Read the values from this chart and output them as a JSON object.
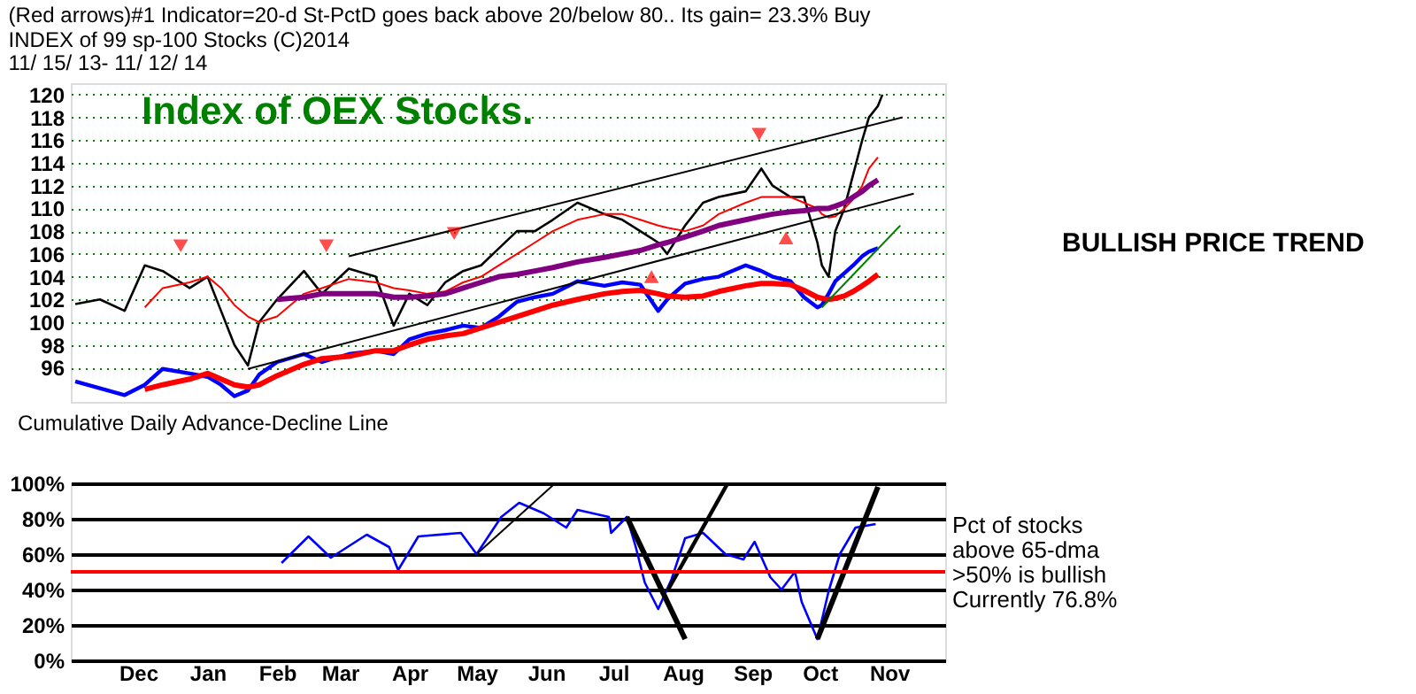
{
  "chart_data": [
    {
      "type": "line",
      "title": [
        "(Red arrows)#1 Indicator=20-d St-PctD goes back above 20/below 80.. Its gain= 23.3% Buy",
        "INDEX of  99 sp-100 Stocks  (C)2014"
      ],
      "subtitle": "11/ 15/ 13- 11/ 12/ 14",
      "annotations": [
        "Index of OEX Stocks.",
        "BULLISH PRICE TREND",
        "Cumulative Daily Advance-Decline Line"
      ],
      "x": [
        "2013-11-17",
        "2013-11-28",
        "2013-12-09",
        "2013-12-18",
        "2013-12-26",
        "2014-01-07",
        "2014-01-15",
        "2014-01-21",
        "2014-01-27",
        "2014-02-02",
        "2014-02-07",
        "2014-02-15",
        "2014-02-27",
        "2014-03-07",
        "2014-03-19",
        "2014-03-31",
        "2014-04-08",
        "2014-04-15",
        "2014-04-23",
        "2014-05-01",
        "2014-05-09",
        "2014-05-17",
        "2014-05-25",
        "2014-06-02",
        "2014-06-10",
        "2014-06-18",
        "2014-06-29",
        "2014-07-11",
        "2014-07-19",
        "2014-07-27",
        "2014-08-04",
        "2014-08-08",
        "2014-08-16",
        "2014-08-24",
        "2014-08-31",
        "2014-09-12",
        "2014-09-19",
        "2014-09-24",
        "2014-10-02",
        "2014-10-08",
        "2014-10-14",
        "2014-10-16",
        "2014-10-19",
        "2014-10-22",
        "2014-10-26",
        "2014-10-30",
        "2014-11-03",
        "2014-11-06",
        "2014-11-10",
        "2014-11-12"
      ],
      "xlim": [
        "2013-11-15",
        "2014-12-10"
      ],
      "ylim": [
        93,
        121
      ],
      "yticks": [
        96,
        98,
        100,
        102,
        104,
        106,
        108,
        110,
        112,
        114,
        116,
        118,
        120
      ],
      "grid": "y",
      "tick_labels": "y",
      "series": [
        {
          "color": "#000000",
          "values": [
            101.6,
            102,
            101,
            105,
            104.5,
            103,
            104,
            101,
            98,
            96.2,
            100,
            102,
            104.5,
            102.5,
            104.7,
            104,
            99.7,
            102.5,
            101.5,
            103.5,
            104.5,
            105,
            106.5,
            108,
            108,
            109,
            110.5,
            109.5,
            109,
            108,
            107,
            106,
            108.5,
            110.5,
            111,
            111.5,
            113.5,
            112,
            111,
            111,
            107,
            105,
            104,
            108,
            110,
            113,
            116,
            118,
            119,
            120
          ]
        },
        {
          "color": "#ff0000",
          "values": [
            null,
            null,
            null,
            101.3,
            103,
            103.5,
            104,
            103,
            101.5,
            100.5,
            100,
            100.5,
            102.5,
            103,
            103.8,
            103.5,
            103,
            102.8,
            102.5,
            102.7,
            103.5,
            104,
            105,
            106,
            107,
            108,
            109,
            109.5,
            109.5,
            109,
            108.5,
            108.3,
            108,
            108.5,
            109.5,
            110.5,
            111,
            111,
            111,
            110.5,
            110,
            109.5,
            109.2,
            109.3,
            110,
            110.8,
            112,
            113.5,
            114.5,
            null
          ]
        },
        {
          "color": "#800080",
          "values": [
            null,
            null,
            null,
            null,
            null,
            null,
            null,
            null,
            null,
            null,
            null,
            102,
            102.2,
            102.5,
            102.5,
            102.5,
            102.2,
            102.2,
            102.3,
            102.5,
            103,
            103.5,
            104,
            104.2,
            104.5,
            104.8,
            105.3,
            105.7,
            106,
            106.3,
            106.8,
            107,
            107.5,
            108,
            108.5,
            109,
            109.3,
            109.5,
            109.7,
            109.8,
            110,
            110,
            110,
            110.2,
            110.5,
            111,
            111.5,
            112,
            112.5,
            null
          ]
        },
        {
          "color": "#0000ff",
          "values": [
            94.8,
            94.2,
            93.6,
            94.5,
            95.9,
            95.5,
            95.2,
            94.5,
            93.5,
            94,
            95.4,
            96.5,
            97.2,
            96.5,
            97.2,
            97.5,
            97.2,
            98.5,
            99,
            99.3,
            99.7,
            99.5,
            100.5,
            101.8,
            102.2,
            102.5,
            103.6,
            103.2,
            103.5,
            103.3,
            101,
            102,
            103.4,
            103.8,
            104,
            105,
            104.5,
            104,
            103.6,
            102.2,
            101.3,
            101.5,
            102.5,
            103.6,
            104.3,
            105,
            105.8,
            106.2,
            106.5,
            null
          ]
        },
        {
          "color": "#ff0000",
          "values": [
            null,
            null,
            null,
            94.1,
            94.5,
            95,
            95.5,
            95,
            94.5,
            94.3,
            94.5,
            95.3,
            96.3,
            96.8,
            97,
            97.5,
            97.5,
            98,
            98.5,
            98.8,
            99,
            99.5,
            100,
            100.5,
            101,
            101.5,
            102,
            102.5,
            102.7,
            102.8,
            102.5,
            102.3,
            102.2,
            102.3,
            102.7,
            103.2,
            103.4,
            103.4,
            103.3,
            102.8,
            102.2,
            102.1,
            102,
            102.1,
            102.3,
            102.7,
            103.2,
            103.6,
            104.2,
            null
          ]
        },
        {
          "color": "#000000",
          "x": [
            "2014-03-19",
            "2014-11-21"
          ],
          "values": [
            105.8,
            118
          ]
        },
        {
          "color": "#000000",
          "x": [
            "2014-02-02",
            "2014-11-26"
          ],
          "values": [
            95.9,
            111.3
          ]
        },
        {
          "color": "#008000",
          "x": [
            "2014-10-16",
            "2014-11-20"
          ],
          "values": [
            101.3,
            108.5
          ]
        },
        {
          "type": "scatter",
          "marker": "triangle-down",
          "color": "#ff0000",
          "x": [
            "2014-01-03",
            "2014-03-09",
            "2014-05-05",
            "2014-09-18"
          ],
          "values": [
            106.7,
            106.7,
            107.8,
            116.5
          ]
        },
        {
          "type": "scatter",
          "marker": "triangle",
          "color": "#ff0000",
          "x": [
            "2014-08-01",
            "2014-09-30"
          ],
          "values": [
            104,
            107.4
          ]
        }
      ]
    },
    {
      "type": "line",
      "annotations": [
        "Pct of stocks",
        "above 65-dma",
        ">50% is bullish",
        "Currently  76.8%"
      ],
      "xlim": [
        "2013-11-15",
        "2014-12-10"
      ],
      "xticks": [
        {
          "value": "2013-12-15",
          "label": "Dec"
        },
        {
          "value": "2014-01-15",
          "label": "Jan"
        },
        {
          "value": "2014-02-15",
          "label": "Feb"
        },
        {
          "value": "2014-03-15",
          "label": "Mar"
        },
        {
          "value": "2014-04-15",
          "label": "Apr"
        },
        {
          "value": "2014-05-15",
          "label": "May"
        },
        {
          "value": "2014-06-15",
          "label": "Jun"
        },
        {
          "value": "2014-07-15",
          "label": "Jul"
        },
        {
          "value": "2014-08-15",
          "label": "Aug"
        },
        {
          "value": "2014-09-15",
          "label": "Sep"
        },
        {
          "value": "2014-10-15",
          "label": "Oct"
        },
        {
          "value": "2014-11-15",
          "label": "Nov"
        }
      ],
      "ylim": [
        0,
        100
      ],
      "yticks": [
        {
          "value": 0,
          "label": "0%"
        },
        {
          "value": 20,
          "label": "20%"
        },
        {
          "value": 40,
          "label": "40%"
        },
        {
          "value": 60,
          "label": "60%"
        },
        {
          "value": 80,
          "label": "80%"
        },
        {
          "value": 100,
          "label": "100%"
        }
      ],
      "grid": "y",
      "ref_lines": [
        {
          "axis": "y",
          "value": 50,
          "color": "#ff0000"
        }
      ],
      "series": [
        {
          "color": "#0000ff",
          "x": [
            "2014-02-17",
            "2014-03-01",
            "2014-03-11",
            "2014-03-27",
            "2014-04-06",
            "2014-04-10",
            "2014-04-19",
            "2014-05-08",
            "2014-05-15",
            "2014-05-26",
            "2014-06-03",
            "2014-06-14",
            "2014-06-24",
            "2014-06-29",
            "2014-07-13",
            "2014-07-14",
            "2014-07-21",
            "2014-07-25",
            "2014-07-29",
            "2014-08-04",
            "2014-08-10",
            "2014-08-16",
            "2014-08-24",
            "2014-09-03",
            "2014-09-11",
            "2014-09-16",
            "2014-09-23",
            "2014-09-28",
            "2014-10-04",
            "2014-10-07",
            "2014-10-14",
            "2014-10-19",
            "2014-10-24",
            "2014-10-31",
            "2014-11-09"
          ],
          "values": [
            55,
            70,
            58,
            71,
            64,
            51,
            70,
            72,
            60,
            81,
            89,
            83,
            75,
            85,
            81,
            72,
            81,
            64,
            44,
            29,
            46,
            69,
            72,
            60,
            57,
            67,
            47,
            40,
            50,
            33,
            12,
            39,
            60,
            75,
            77
          ]
        },
        {
          "color": "#000000",
          "x": [
            "2014-05-15",
            "2014-06-19"
          ],
          "values": [
            60,
            100
          ]
        },
        {
          "color": "#000000",
          "x": [
            "2014-07-21",
            "2014-08-16"
          ],
          "values": [
            81,
            12
          ]
        },
        {
          "color": "#000000",
          "x": [
            "2014-08-08",
            "2014-09-04"
          ],
          "values": [
            39,
            100
          ]
        },
        {
          "color": "#000000",
          "x": [
            "2014-10-14",
            "2014-11-10"
          ],
          "values": [
            12,
            98
          ]
        }
      ]
    }
  ]
}
